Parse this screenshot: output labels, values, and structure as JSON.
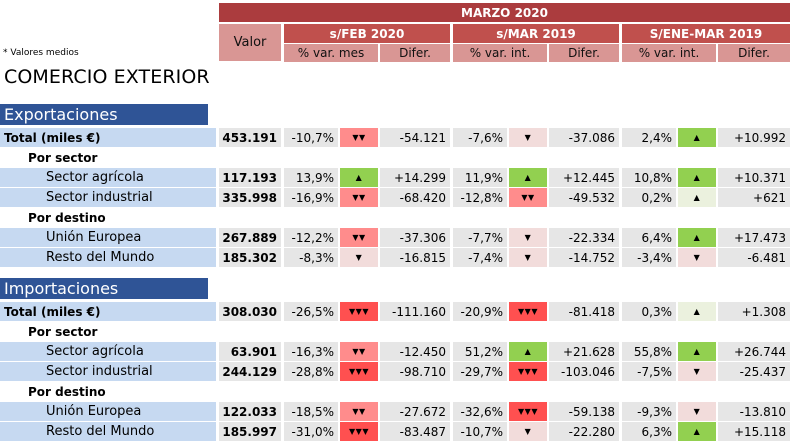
{
  "header": {
    "period": "MARZO 2020",
    "valor_label": "Valor",
    "groups": [
      "s/FEB 2020",
      "s/MAR 2019",
      "S/ENE-MAR 2019"
    ],
    "subheaders": [
      "% var. mes",
      "Difer.",
      "% var. int.",
      "Difer.",
      "% var. int.",
      "Difer."
    ]
  },
  "note": "* Valores medios",
  "title": "COMERCIO EXTERIOR",
  "colors": {
    "header_dark": "#ab3c3e",
    "header_mid": "#c0504d",
    "header_light": "#d99694",
    "section_blue": "#2f5496",
    "label_blue": "#c6d9f1",
    "up_strong": "#92d050",
    "down": "#ff8c8c",
    "down_strong": "#ff5050"
  },
  "sections": [
    {
      "title": "Exportaciones",
      "rows": [
        {
          "kind": "total",
          "label": "Total (miles €)",
          "valor": "453.191",
          "p1": "-10,7%",
          "i1": "▼▼",
          "c1": "down",
          "d1": "-54.121",
          "p2": "-7,6%",
          "i2": "▼",
          "c2": "down-mild",
          "d2": "-37.086",
          "p3": "2,4%",
          "i3": "▲",
          "c3": "up-strong",
          "d3": "+10.992"
        },
        {
          "kind": "group",
          "label": "Por sector"
        },
        {
          "kind": "sub",
          "label": "Sector agrícola",
          "valor": "117.193",
          "p1": "13,9%",
          "i1": "▲",
          "c1": "up-strong",
          "d1": "+14.299",
          "p2": "11,9%",
          "i2": "▲",
          "c2": "up-strong",
          "d2": "+12.445",
          "p3": "10,8%",
          "i3": "▲",
          "c3": "up-strong",
          "d3": "+10.371"
        },
        {
          "kind": "sub",
          "label": "Sector industrial",
          "valor": "335.998",
          "p1": "-16,9%",
          "i1": "▼▼",
          "c1": "down",
          "d1": "-68.420",
          "p2": "-12,8%",
          "i2": "▼▼",
          "c2": "down",
          "d2": "-49.532",
          "p3": "0,2%",
          "i3": "▲",
          "c3": "up-weak",
          "d3": "+621"
        },
        {
          "kind": "group",
          "label": "Por destino"
        },
        {
          "kind": "sub",
          "label": "Unión Europea",
          "valor": "267.889",
          "p1": "-12,2%",
          "i1": "▼▼",
          "c1": "down",
          "d1": "-37.306",
          "p2": "-7,7%",
          "i2": "▼",
          "c2": "down-mild",
          "d2": "-22.334",
          "p3": "6,4%",
          "i3": "▲",
          "c3": "up-strong",
          "d3": "+17.473"
        },
        {
          "kind": "sub",
          "label": "Resto del Mundo",
          "valor": "185.302",
          "p1": "-8,3%",
          "i1": "▼",
          "c1": "down-mild",
          "d1": "-16.815",
          "p2": "-7,4%",
          "i2": "▼",
          "c2": "down-mild",
          "d2": "-14.752",
          "p3": "-3,4%",
          "i3": "▼",
          "c3": "down-mild",
          "d3": "-6.481"
        }
      ]
    },
    {
      "title": "Importaciones",
      "rows": [
        {
          "kind": "total",
          "label": "Total (miles €)",
          "valor": "308.030",
          "p1": "-26,5%",
          "i1": "▼▼▼",
          "c1": "down-strong",
          "d1": "-111.160",
          "p2": "-20,9%",
          "i2": "▼▼▼",
          "c2": "down-strong",
          "d2": "-81.418",
          "p3": "0,3%",
          "i3": "▲",
          "c3": "up-weak",
          "d3": "+1.308"
        },
        {
          "kind": "group",
          "label": "Por sector"
        },
        {
          "kind": "sub",
          "label": "Sector agrícola",
          "valor": "63.901",
          "p1": "-16,3%",
          "i1": "▼▼",
          "c1": "down",
          "d1": "-12.450",
          "p2": "51,2%",
          "i2": "▲",
          "c2": "up-strong",
          "d2": "+21.628",
          "p3": "55,8%",
          "i3": "▲",
          "c3": "up-strong",
          "d3": "+26.744"
        },
        {
          "kind": "sub",
          "label": "Sector industrial",
          "valor": "244.129",
          "p1": "-28,8%",
          "i1": "▼▼▼",
          "c1": "down-strong",
          "d1": "-98.710",
          "p2": "-29,7%",
          "i2": "▼▼▼",
          "c2": "down-strong",
          "d2": "-103.046",
          "p3": "-7,5%",
          "i3": "▼",
          "c3": "down-mild",
          "d3": "-25.437"
        },
        {
          "kind": "group",
          "label": "Por destino"
        },
        {
          "kind": "sub",
          "label": "Unión Europea",
          "valor": "122.033",
          "p1": "-18,5%",
          "i1": "▼▼",
          "c1": "down",
          "d1": "-27.672",
          "p2": "-32,6%",
          "i2": "▼▼▼",
          "c2": "down-strong",
          "d2": "-59.138",
          "p3": "-9,3%",
          "i3": "▼",
          "c3": "down-mild",
          "d3": "-13.810"
        },
        {
          "kind": "sub",
          "label": "Resto del Mundo",
          "valor": "185.997",
          "p1": "-31,0%",
          "i1": "▼▼▼",
          "c1": "down-strong",
          "d1": "-83.487",
          "p2": "-10,7%",
          "i2": "▼",
          "c2": "down-mild",
          "d2": "-22.280",
          "p3": "6,3%",
          "i3": "▲",
          "c3": "up-strong",
          "d3": "+15.118"
        }
      ]
    }
  ]
}
